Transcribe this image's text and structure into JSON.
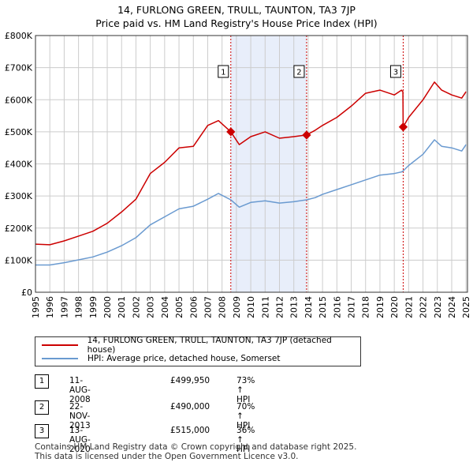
{
  "title_line1": "14, FURLONG GREEN, TRULL, TAUNTON, TA3 7JP",
  "title_line2": "Price paid vs. HM Land Registry's House Price Index (HPI)",
  "colors": {
    "property": "#cc0000",
    "hpi": "#6a9ad0",
    "shade": "#e8eefa",
    "grid": "#cccccc",
    "marker_line": "#cc0000"
  },
  "chart_data": {
    "type": "line",
    "x_range": [
      1995,
      2025.1
    ],
    "ylim": [
      0,
      800000
    ],
    "yticks": [
      0,
      100000,
      200000,
      300000,
      400000,
      500000,
      600000,
      700000,
      800000
    ],
    "ytick_labels": [
      "£0",
      "£100K",
      "£200K",
      "£300K",
      "£400K",
      "£500K",
      "£600K",
      "£700K",
      "£800K"
    ],
    "xticks": [
      1995,
      1996,
      1997,
      1998,
      1999,
      2000,
      2001,
      2002,
      2003,
      2004,
      2005,
      2006,
      2007,
      2008,
      2009,
      2010,
      2011,
      2012,
      2013,
      2014,
      2015,
      2016,
      2017,
      2018,
      2019,
      2020,
      2021,
      2022,
      2023,
      2024,
      2025
    ],
    "xtick_labels": [
      "1995",
      "1996",
      "1997",
      "1998",
      "1999",
      "2000",
      "2001",
      "2002",
      "2003",
      "2004",
      "2005",
      "2006",
      "2007",
      "2008",
      "2009",
      "2010",
      "2011",
      "2012",
      "2013",
      "2014",
      "2015",
      "2016",
      "2017",
      "2018",
      "2019",
      "2020",
      "2021",
      "2022",
      "2023",
      "2024",
      "2025"
    ],
    "shaded_span": [
      2008.61,
      2013.89
    ],
    "series": [
      {
        "name": "14, FURLONG GREEN, TRULL, TAUNTON, TA3 7JP (detached house)",
        "x": [
          1995,
          1996,
          1997,
          1998,
          1999,
          2000,
          2001,
          2002,
          2003,
          2004,
          2005,
          2006,
          2007,
          2007.75,
          2008.61,
          2009.2,
          2010,
          2011,
          2012,
          2013,
          2013.89,
          2014.5,
          2015,
          2016,
          2017,
          2018,
          2019,
          2020,
          2020.5,
          2020.6,
          2020.62,
          2021,
          2022,
          2022.8,
          2023.3,
          2024,
          2024.7,
          2025
        ],
        "y": [
          150000,
          148000,
          160000,
          175000,
          190000,
          215000,
          250000,
          290000,
          370000,
          405000,
          450000,
          455000,
          520000,
          535000,
          499950,
          460000,
          485000,
          500000,
          480000,
          485000,
          490000,
          505000,
          520000,
          545000,
          580000,
          620000,
          630000,
          615000,
          630000,
          625000,
          515000,
          545000,
          600000,
          655000,
          630000,
          615000,
          605000,
          625000
        ]
      },
      {
        "name": "HPI: Average price, detached house, Somerset",
        "x": [
          1995,
          1996,
          1997,
          1998,
          1999,
          2000,
          2001,
          2002,
          2003,
          2004,
          2005,
          2006,
          2007,
          2007.75,
          2008.61,
          2009.2,
          2010,
          2011,
          2012,
          2013,
          2013.89,
          2014.5,
          2015,
          2016,
          2017,
          2018,
          2019,
          2020,
          2020.5,
          2020.62,
          2021,
          2022,
          2022.8,
          2023.3,
          2024,
          2024.7,
          2025
        ],
        "y": [
          85000,
          85000,
          92000,
          101000,
          110000,
          125000,
          145000,
          170000,
          210000,
          235000,
          260000,
          268000,
          290000,
          308000,
          288000,
          265000,
          280000,
          285000,
          278000,
          282000,
          288000,
          295000,
          305000,
          320000,
          335000,
          350000,
          365000,
          370000,
          375000,
          378000,
          395000,
          430000,
          475000,
          455000,
          450000,
          440000,
          460000
        ]
      }
    ],
    "sale_markers": [
      {
        "label": "1",
        "x": 2008.61,
        "y": 499950
      },
      {
        "label": "2",
        "x": 2013.89,
        "y": 490000
      },
      {
        "label": "3",
        "x": 2020.62,
        "y": 515000
      }
    ]
  },
  "legend": {
    "property_label": "14, FURLONG GREEN, TRULL, TAUNTON, TA3 7JP (detached house)",
    "hpi_label": "HPI: Average price, detached house, Somerset"
  },
  "sales": [
    {
      "num": "1",
      "date": "11-AUG-2008",
      "price": "£499,950",
      "hpi": "73% ↑ HPI"
    },
    {
      "num": "2",
      "date": "22-NOV-2013",
      "price": "£490,000",
      "hpi": "70% ↑ HPI"
    },
    {
      "num": "3",
      "date": "13-AUG-2020",
      "price": "£515,000",
      "hpi": "36% ↑ HPI"
    }
  ],
  "footer_line1": "Contains HM Land Registry data © Crown copyright and database right 2025.",
  "footer_line2": "This data is licensed under the Open Government Licence v3.0."
}
